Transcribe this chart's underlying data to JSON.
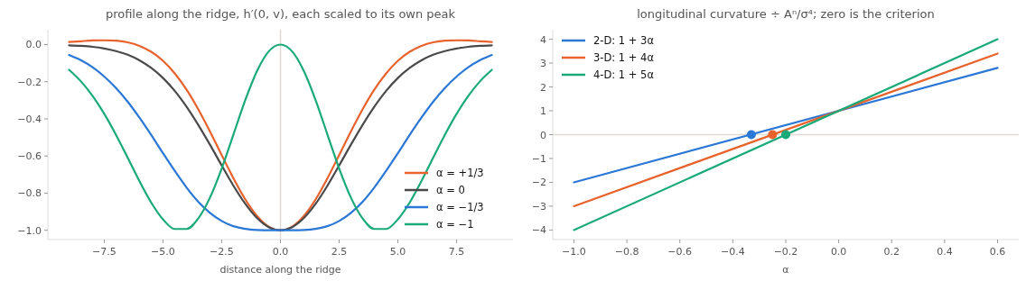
{
  "chart_data": [
    {
      "type": "line",
      "title": "profile along the ridge, h′(0, v), each scaled to its own peak",
      "xlabel": "distance along the ridge",
      "x": [
        -9,
        -8.5,
        -8,
        -7.5,
        -7,
        -6.5,
        -6,
        -5.5,
        -5,
        -4.5,
        -4,
        -3.5,
        -3,
        -2.5,
        -2,
        -1.5,
        -1,
        -0.5,
        0,
        0.5,
        1,
        1.5,
        2,
        2.5,
        3,
        3.5,
        4,
        4.5,
        5,
        5.5,
        6,
        6.5,
        7,
        7.5,
        8,
        8.5,
        9
      ],
      "series": [
        {
          "name": "α = +1/3",
          "color": "#e8622c",
          "values": [
            0.014,
            0.018,
            0.022,
            0.023,
            0.021,
            0.012,
            -0.007,
            -0.039,
            -0.087,
            -0.155,
            -0.242,
            -0.348,
            -0.468,
            -0.595,
            -0.72,
            -0.833,
            -0.922,
            -0.98,
            -1,
            -0.98,
            -0.922,
            -0.833,
            -0.72,
            -0.595,
            -0.468,
            -0.348,
            -0.242,
            -0.155,
            -0.087,
            -0.039,
            -0.007,
            0.012,
            0.021,
            0.023,
            0.022,
            0.018,
            0.014
          ]
        },
        {
          "name": "α = 0",
          "color": "#4a4a4a",
          "values": [
            -0.004,
            -0.007,
            -0.012,
            -0.021,
            -0.035,
            -0.055,
            -0.085,
            -0.126,
            -0.18,
            -0.249,
            -0.334,
            -0.432,
            -0.539,
            -0.651,
            -0.76,
            -0.857,
            -0.934,
            -0.983,
            -1,
            -0.983,
            -0.934,
            -0.857,
            -0.76,
            -0.651,
            -0.539,
            -0.432,
            -0.334,
            -0.249,
            -0.18,
            -0.126,
            -0.085,
            -0.055,
            -0.035,
            -0.021,
            -0.012,
            -0.007,
            -0.004
          ]
        },
        {
          "name": "α = −1/3",
          "color": "#2a77d6",
          "values": [
            -0.056,
            -0.084,
            -0.122,
            -0.172,
            -0.234,
            -0.308,
            -0.394,
            -0.487,
            -0.585,
            -0.68,
            -0.769,
            -0.846,
            -0.906,
            -0.95,
            -0.978,
            -0.992,
            -0.998,
            -1,
            -1,
            -1,
            -0.998,
            -0.992,
            -0.978,
            -0.95,
            -0.906,
            -0.846,
            -0.769,
            -0.68,
            -0.585,
            -0.487,
            -0.394,
            -0.308,
            -0.234,
            -0.172,
            -0.122,
            -0.084,
            -0.056
          ]
        },
        {
          "name": "α = −1",
          "color": "#1aaa7a",
          "values": [
            -0.136,
            -0.197,
            -0.276,
            -0.373,
            -0.486,
            -0.61,
            -0.736,
            -0.851,
            -0.941,
            -0.993,
            -0.993,
            -0.937,
            -0.824,
            -0.667,
            -0.484,
            -0.3,
            -0.143,
            -0.037,
            0,
            -0.037,
            -0.143,
            -0.3,
            -0.484,
            -0.667,
            -0.824,
            -0.937,
            -0.993,
            -0.993,
            -0.941,
            -0.851,
            -0.736,
            -0.61,
            -0.486,
            -0.373,
            -0.276,
            -0.197,
            -0.136
          ]
        }
      ],
      "xlim": [
        -9.9,
        9.9
      ],
      "xticks": [
        {
          "value": -7.5,
          "label": "−7.5"
        },
        {
          "value": -5,
          "label": "−5.0"
        },
        {
          "value": -2.5,
          "label": "−2.5"
        },
        {
          "value": 0,
          "label": "0.0"
        },
        {
          "value": 2.5,
          "label": "2.5"
        },
        {
          "value": 5,
          "label": "5.0"
        },
        {
          "value": 7.5,
          "label": "7.5"
        }
      ],
      "ylim": [
        -1.05,
        0.08
      ],
      "yticks": [
        {
          "value": 0,
          "label": "0.0"
        },
        {
          "value": -0.2,
          "label": "−0.2"
        },
        {
          "value": -0.4,
          "label": "−0.4"
        },
        {
          "value": -0.6,
          "label": "−0.6"
        },
        {
          "value": -0.8,
          "label": "−0.8"
        },
        {
          "value": -1,
          "label": "−1.0"
        }
      ],
      "ref_lines": [
        {
          "axis": "x",
          "value": 0,
          "color": "#dddad2"
        }
      ],
      "legend": "bottom right",
      "grid": false
    },
    {
      "type": "line",
      "title": "longitudinal curvature ÷ Aⁿ/σ⁴;  zero is the criterion",
      "xlabel": "α",
      "series": [
        {
          "name": "2-D:  1 + 3α",
          "color": "#2a77d6",
          "x": [
            -1,
            0.6
          ],
          "values": [
            -2,
            2.8
          ]
        },
        {
          "name": "3-D:  1 + 4α",
          "color": "#e8622c",
          "x": [
            -1,
            0.6
          ],
          "values": [
            -3,
            3.4
          ]
        },
        {
          "name": "4-D:  1 + 5α",
          "color": "#1aaa7a",
          "x": [
            -1,
            0.6
          ],
          "values": [
            -4,
            4
          ]
        },
        {
          "type": "scatter",
          "marker": "circle",
          "color": "#2a77d6",
          "x": [
            -0.33
          ],
          "values": [
            0
          ]
        },
        {
          "type": "scatter",
          "marker": "circle",
          "color": "#e8622c",
          "x": [
            -0.25
          ],
          "values": [
            0
          ]
        },
        {
          "type": "scatter",
          "marker": "circle",
          "color": "#1aaa7a",
          "x": [
            -0.2
          ],
          "values": [
            0
          ]
        }
      ],
      "xlim": [
        -1.08,
        0.68
      ],
      "xticks": [
        {
          "value": -1,
          "label": "−1.0"
        },
        {
          "value": -0.8,
          "label": "−0.8"
        },
        {
          "value": -0.6,
          "label": "−0.6"
        },
        {
          "value": -0.4,
          "label": "−0.4"
        },
        {
          "value": -0.2,
          "label": "−0.2"
        },
        {
          "value": 0,
          "label": "0.0"
        },
        {
          "value": 0.2,
          "label": "0.2"
        },
        {
          "value": 0.4,
          "label": "0.4"
        },
        {
          "value": 0.6,
          "label": "0.6"
        }
      ],
      "ylim": [
        -4.4,
        4.4
      ],
      "yticks": [
        {
          "value": -4,
          "label": "−4"
        },
        {
          "value": -3,
          "label": "−3"
        },
        {
          "value": -2,
          "label": "−2"
        },
        {
          "value": -1,
          "label": "−1"
        },
        0,
        1,
        2,
        3,
        4
      ],
      "ref_lines": [
        {
          "axis": "y",
          "value": 0,
          "color": "#dddad2"
        }
      ],
      "legend": "top left",
      "grid": false
    }
  ]
}
